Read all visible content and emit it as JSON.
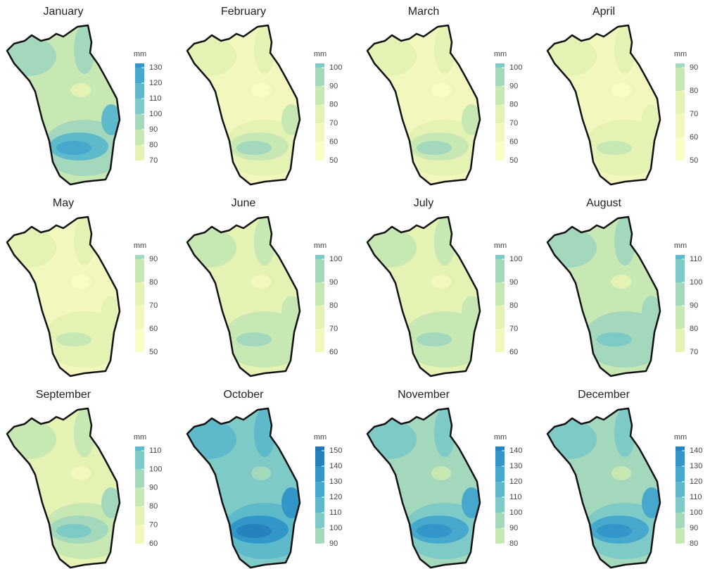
{
  "panels": [
    {
      "title": "January",
      "unit": "mm",
      "ticks": [
        70,
        80,
        90,
        100,
        110,
        120,
        130
      ]
    },
    {
      "title": "February",
      "unit": "mm",
      "ticks": [
        50,
        60,
        70,
        80,
        90,
        100
      ]
    },
    {
      "title": "March",
      "unit": "mm",
      "ticks": [
        50,
        60,
        70,
        80,
        90,
        100
      ]
    },
    {
      "title": "April",
      "unit": "mm",
      "ticks": [
        50,
        60,
        70,
        80,
        90
      ]
    },
    {
      "title": "May",
      "unit": "mm",
      "ticks": [
        50,
        60,
        70,
        80,
        90
      ]
    },
    {
      "title": "June",
      "unit": "mm",
      "ticks": [
        60,
        70,
        80,
        90,
        100
      ]
    },
    {
      "title": "July",
      "unit": "mm",
      "ticks": [
        60,
        70,
        80,
        90,
        100
      ]
    },
    {
      "title": "August",
      "unit": "mm",
      "ticks": [
        70,
        80,
        90,
        100,
        110
      ]
    },
    {
      "title": "September",
      "unit": "mm",
      "ticks": [
        60,
        70,
        80,
        90,
        100,
        110
      ]
    },
    {
      "title": "October",
      "unit": "mm",
      "ticks": [
        90,
        100,
        110,
        120,
        130,
        140,
        150
      ]
    },
    {
      "title": "November",
      "unit": "mm",
      "ticks": [
        80,
        90,
        100,
        110,
        120,
        130,
        140
      ]
    },
    {
      "title": "December",
      "unit": "mm",
      "ticks": [
        80,
        90,
        100,
        110,
        120,
        130,
        140
      ]
    }
  ]
}
